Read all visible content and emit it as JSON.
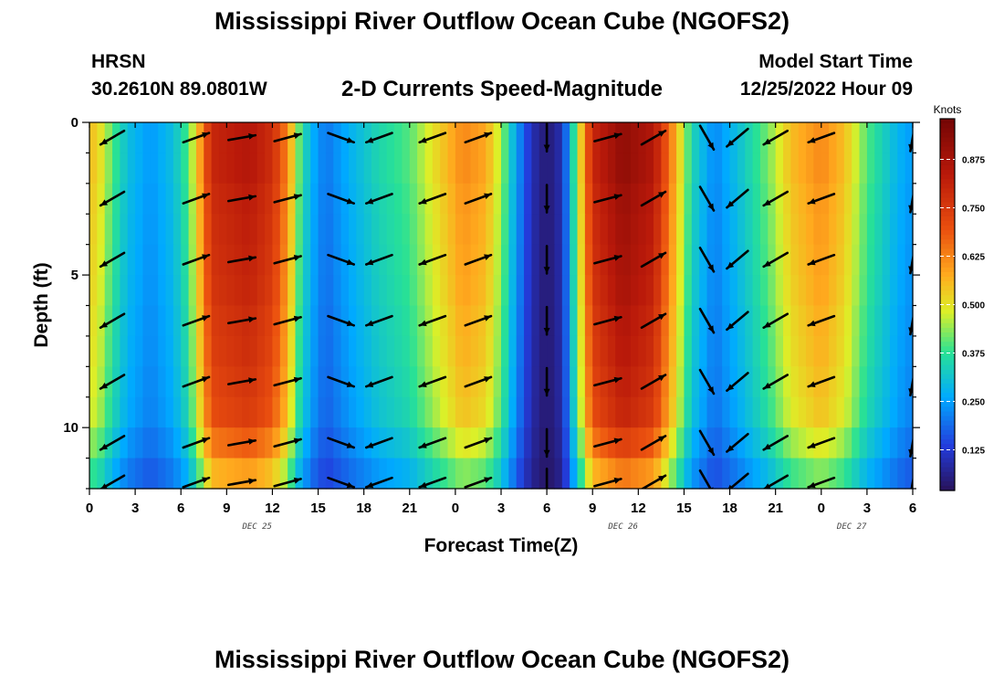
{
  "page": {
    "title": "Mississippi River Outflow Ocean Cube (NGOFS2)",
    "title_repeat": "Mississippi River Outflow Ocean Cube (NGOFS2)",
    "station": "HRSN",
    "coords": "30.2610N  89.0801W",
    "subtitle": "2-D Currents Speed-Magnitude",
    "start_label": "Model Start Time",
    "start_value": "12/25/2022 Hour 09"
  },
  "chart_data": {
    "type": "heatmap",
    "title": "2-D Currents Speed-Magnitude",
    "xlabel": "Forecast Time(Z)",
    "ylabel": "Depth (ft)",
    "colorbar_label": "Knots",
    "colorbar_ticks": [
      0.125,
      0.25,
      0.375,
      0.5,
      0.625,
      0.75,
      0.875
    ],
    "colorbar_range": [
      0.02,
      0.98
    ],
    "x_range_hours": [
      0,
      54
    ],
    "y_range_ft": [
      0,
      12
    ],
    "x_ticks": [
      "0",
      "3",
      "6",
      "9",
      "12",
      "15",
      "18",
      "21",
      "0",
      "3",
      "6",
      "9",
      "12",
      "15",
      "18",
      "21",
      "0",
      "3",
      "6"
    ],
    "y_ticks": [
      "0",
      "5",
      "10"
    ],
    "date_labels": [
      {
        "text": "DEC 25",
        "hour": 11
      },
      {
        "text": "DEC 26",
        "hour": 35
      },
      {
        "text": "DEC 27",
        "hour": 50
      }
    ],
    "depth_levels_ft": [
      0.5,
      1.5,
      2.5,
      3.5,
      4.5,
      5.5,
      6.5,
      7.5,
      8.5,
      9.5,
      10.5,
      11.5
    ],
    "time_speed_profile": [
      {
        "t": 0,
        "s": 0.55
      },
      {
        "t": 0.6,
        "s": 0.52
      },
      {
        "t": 1.5,
        "s": 0.4
      },
      {
        "t": 2.5,
        "s": 0.3
      },
      {
        "t": 4,
        "s": 0.24
      },
      {
        "t": 5.5,
        "s": 0.3
      },
      {
        "t": 6.5,
        "s": 0.4
      },
      {
        "t": 7.3,
        "s": 0.6
      },
      {
        "t": 8,
        "s": 0.8
      },
      {
        "t": 10.5,
        "s": 0.85
      },
      {
        "t": 12,
        "s": 0.78
      },
      {
        "t": 13,
        "s": 0.62
      },
      {
        "t": 13.7,
        "s": 0.42
      },
      {
        "t": 14.5,
        "s": 0.28
      },
      {
        "t": 15.5,
        "s": 0.2
      },
      {
        "t": 17,
        "s": 0.27
      },
      {
        "t": 19,
        "s": 0.35
      },
      {
        "t": 21,
        "s": 0.4
      },
      {
        "t": 22.5,
        "s": 0.5
      },
      {
        "t": 24.5,
        "s": 0.62
      },
      {
        "t": 26,
        "s": 0.58
      },
      {
        "t": 27,
        "s": 0.45
      },
      {
        "t": 28,
        "s": 0.25
      },
      {
        "t": 29,
        "s": 0.1
      },
      {
        "t": 30,
        "s": 0.04
      },
      {
        "t": 31,
        "s": 0.1
      },
      {
        "t": 32,
        "s": 0.45
      },
      {
        "t": 33,
        "s": 0.8
      },
      {
        "t": 35,
        "s": 0.92
      },
      {
        "t": 37,
        "s": 0.85
      },
      {
        "t": 38.3,
        "s": 0.6
      },
      {
        "t": 39.5,
        "s": 0.35
      },
      {
        "t": 41,
        "s": 0.22
      },
      {
        "t": 42.5,
        "s": 0.3
      },
      {
        "t": 44.5,
        "s": 0.42
      },
      {
        "t": 46,
        "s": 0.55
      },
      {
        "t": 48,
        "s": 0.62
      },
      {
        "t": 49.5,
        "s": 0.55
      },
      {
        "t": 51,
        "s": 0.4
      },
      {
        "t": 53,
        "s": 0.28
      },
      {
        "t": 54,
        "s": 0.24
      }
    ],
    "depth_factor": [
      1.0,
      1.0,
      0.98,
      0.97,
      0.96,
      0.95,
      0.93,
      0.92,
      0.9,
      0.88,
      0.8,
      0.7
    ],
    "vector_times_hours": [
      1.5,
      7,
      10,
      13,
      16.5,
      19,
      22.5,
      25.5,
      30,
      34,
      37,
      40.5,
      42.5,
      45,
      48,
      54
    ],
    "vector_depths_ft": [
      0.5,
      2.5,
      4.5,
      6.5,
      8.5,
      10.5,
      11.8
    ],
    "vector_directions_deg": [
      210,
      20,
      10,
      15,
      340,
      200,
      200,
      20,
      270,
      15,
      30,
      300,
      220,
      210,
      200,
      260
    ]
  }
}
